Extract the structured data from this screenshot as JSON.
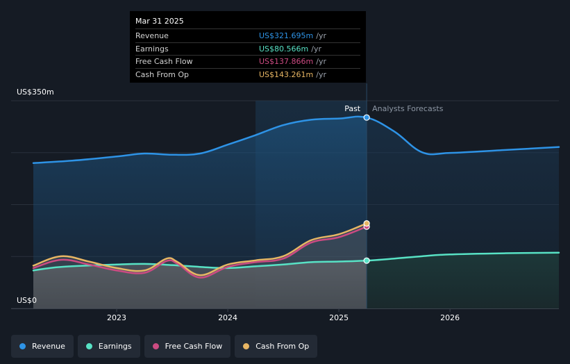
{
  "chart_data": {
    "type": "line",
    "ylabel_top": "US$350m",
    "ylabel_bottom": "US$0",
    "ylim": [
      0,
      350
    ],
    "xlim": [
      2022.25,
      2026.98
    ],
    "x_ticks": [
      {
        "x": 2023.0,
        "label": "2023"
      },
      {
        "x": 2024.0,
        "label": "2024"
      },
      {
        "x": 2025.0,
        "label": "2025"
      },
      {
        "x": 2026.0,
        "label": "2026"
      }
    ],
    "past_label": "Past",
    "forecast_label": "Analysts Forecasts",
    "past_end_x": 2025.25,
    "highlight_start_x": 2024.25,
    "series": [
      {
        "name": "Revenue",
        "color": "#2e93e6",
        "points": [
          [
            2022.25,
            245
          ],
          [
            2022.6,
            249
          ],
          [
            2023.0,
            256
          ],
          [
            2023.25,
            261
          ],
          [
            2023.5,
            259
          ],
          [
            2023.75,
            261
          ],
          [
            2024.0,
            276
          ],
          [
            2024.25,
            292
          ],
          [
            2024.5,
            309
          ],
          [
            2024.75,
            318
          ],
          [
            2025.0,
            320
          ],
          [
            2025.25,
            321.695
          ],
          [
            2025.5,
            298
          ],
          [
            2025.75,
            263
          ],
          [
            2026.0,
            262
          ],
          [
            2026.5,
            267
          ],
          [
            2026.98,
            272
          ]
        ]
      },
      {
        "name": "Earnings",
        "color": "#58e2c5",
        "points": [
          [
            2022.25,
            64
          ],
          [
            2022.5,
            70
          ],
          [
            2023.0,
            74
          ],
          [
            2023.25,
            75
          ],
          [
            2023.5,
            73
          ],
          [
            2023.75,
            70
          ],
          [
            2024.0,
            68
          ],
          [
            2024.25,
            71
          ],
          [
            2024.5,
            74
          ],
          [
            2024.75,
            78
          ],
          [
            2025.0,
            79
          ],
          [
            2025.25,
            80.566
          ],
          [
            2025.5,
            84
          ],
          [
            2025.75,
            88
          ],
          [
            2026.0,
            91
          ],
          [
            2026.5,
            93
          ],
          [
            2026.98,
            94
          ]
        ]
      },
      {
        "name": "Free Cash Flow",
        "color": "#cc4b82",
        "points": [
          [
            2022.25,
            68
          ],
          [
            2022.5,
            82
          ],
          [
            2022.75,
            74
          ],
          [
            2023.0,
            64
          ],
          [
            2023.25,
            60
          ],
          [
            2023.45,
            80
          ],
          [
            2023.55,
            75
          ],
          [
            2023.75,
            52
          ],
          [
            2024.0,
            70
          ],
          [
            2024.25,
            78
          ],
          [
            2024.5,
            84
          ],
          [
            2024.75,
            111
          ],
          [
            2025.0,
            120
          ],
          [
            2025.25,
            137.866
          ]
        ]
      },
      {
        "name": "Cash From Op",
        "color": "#e8b664",
        "points": [
          [
            2022.25,
            72
          ],
          [
            2022.5,
            88
          ],
          [
            2022.75,
            79
          ],
          [
            2023.0,
            68
          ],
          [
            2023.25,
            64
          ],
          [
            2023.45,
            84
          ],
          [
            2023.55,
            78
          ],
          [
            2023.75,
            56
          ],
          [
            2024.0,
            74
          ],
          [
            2024.25,
            81
          ],
          [
            2024.5,
            88
          ],
          [
            2024.75,
            115
          ],
          [
            2025.0,
            125
          ],
          [
            2025.25,
            143.261
          ]
        ]
      }
    ]
  },
  "tooltip": {
    "date": "Mar 31 2025",
    "rows": [
      {
        "label": "Revenue",
        "value": "US$321.695m",
        "unit": "/yr",
        "color": "#2e93e6"
      },
      {
        "label": "Earnings",
        "value": "US$80.566m",
        "unit": "/yr",
        "color": "#58e2c5"
      },
      {
        "label": "Free Cash Flow",
        "value": "US$137.866m",
        "unit": "/yr",
        "color": "#cc4b82"
      },
      {
        "label": "Cash From Op",
        "value": "US$143.261m",
        "unit": "/yr",
        "color": "#e8b664"
      }
    ]
  },
  "legend": [
    {
      "label": "Revenue",
      "color": "#2e93e6"
    },
    {
      "label": "Earnings",
      "color": "#58e2c5"
    },
    {
      "label": "Free Cash Flow",
      "color": "#cc4b82"
    },
    {
      "label": "Cash From Op",
      "color": "#e8b664"
    }
  ]
}
